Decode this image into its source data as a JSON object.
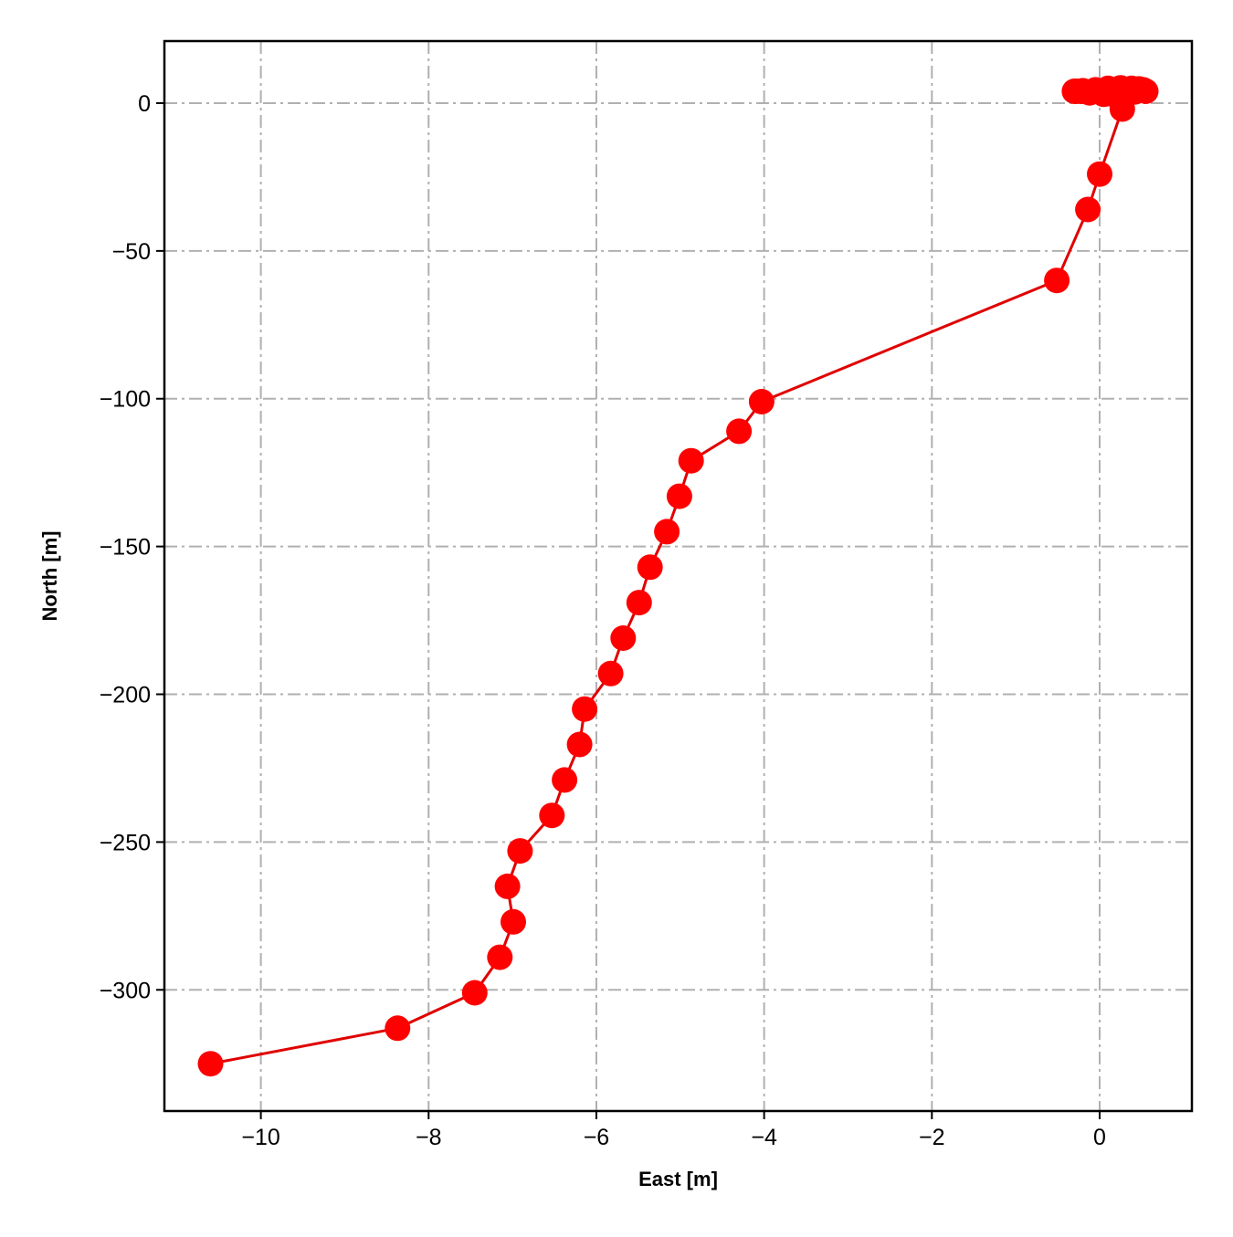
{
  "chart_data": {
    "type": "line",
    "title": "",
    "xlabel": "East [m]",
    "ylabel": "North [m]",
    "xlim": [
      -11.15,
      1.1
    ],
    "ylim": [
      -341,
      21
    ],
    "xticks": [
      -10,
      -8,
      -6,
      -4,
      -2,
      0
    ],
    "yticks": [
      0,
      -50,
      -100,
      -150,
      -200,
      -250,
      -300
    ],
    "xtick_labels": [
      "−10",
      "−8",
      "−6",
      "−4",
      "−2",
      "0"
    ],
    "ytick_labels": [
      "0",
      "−50",
      "−100",
      "−150",
      "−200",
      "−250",
      "−300"
    ],
    "grid": true,
    "grid_style": "dash-dot",
    "marker": "circle",
    "colors": {
      "series": "#ff0000",
      "line": "#e00000",
      "grid": "#b0b0b0",
      "frame": "#000000"
    },
    "series": [
      {
        "x": [
          -10.6,
          -8.37,
          -7.45,
          -7.15,
          -6.99,
          -7.06,
          -6.91,
          -6.53,
          -6.38,
          -6.2,
          -6.14,
          -5.83,
          -5.68,
          -5.49,
          -5.36,
          -5.16,
          -5.01,
          -4.87,
          -4.3,
          -4.03,
          -0.51,
          -0.14,
          0.0,
          0.27,
          0.22,
          0.05,
          -0.12,
          -0.22,
          -0.28,
          -0.3,
          -0.2,
          -0.05,
          0.1,
          0.25,
          0.38,
          0.47,
          0.52,
          0.55,
          0.42,
          0.3,
          0.18,
          0.05
        ],
        "y": [
          -325,
          -313,
          -301,
          -289,
          -277,
          -265,
          -253,
          -241,
          -229,
          -217,
          -205,
          -193,
          -181,
          -169,
          -157,
          -145,
          -133,
          -121,
          -111,
          -101,
          -60,
          -36,
          -24,
          -2,
          2,
          3,
          3.5,
          4,
          4,
          4,
          4.2,
          4.5,
          5,
          5.2,
          5,
          4.8,
          4.5,
          4,
          3.8,
          3.8,
          4,
          4.2
        ]
      }
    ]
  }
}
